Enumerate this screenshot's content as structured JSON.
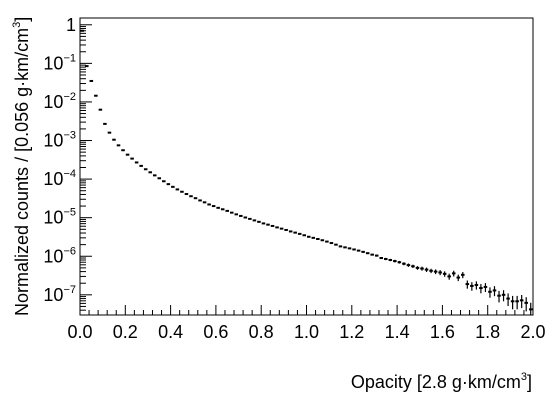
{
  "chart_data": {
    "type": "scatter",
    "style": "histogram markers with error bars",
    "xlabel": "Opacity [2.8 g·km/cm",
    "xlabel_sup": "3",
    "xlabel_close": "]",
    "ylabel": "Normalized counts / [0.056 g·km/cm",
    "ylabel_sup": "3",
    "ylabel_close": "]",
    "xlim": [
      0.0,
      2.0
    ],
    "ylim": [
      3e-08,
      1.5
    ],
    "y_scale": "log",
    "grid": false,
    "x_ticks": [
      {
        "value": 0.0,
        "label": "0.0"
      },
      {
        "value": 0.2,
        "label": "0.2"
      },
      {
        "value": 0.4,
        "label": "0.4"
      },
      {
        "value": 0.6,
        "label": "0.6"
      },
      {
        "value": 0.8,
        "label": "0.8"
      },
      {
        "value": 1.0,
        "label": "1.0"
      },
      {
        "value": 1.2,
        "label": "1.2"
      },
      {
        "value": 1.4,
        "label": "1.4"
      },
      {
        "value": 1.6,
        "label": "1.6"
      },
      {
        "value": 1.8,
        "label": "1.8"
      },
      {
        "value": 2.0,
        "label": "2.0"
      }
    ],
    "y_ticks": [
      {
        "value": 1,
        "label": "1",
        "exp": ""
      },
      {
        "value": 0.1,
        "label": "10",
        "exp": "−1"
      },
      {
        "value": 0.01,
        "label": "10",
        "exp": "−2"
      },
      {
        "value": 0.001,
        "label": "10",
        "exp": "−3"
      },
      {
        "value": 0.0001,
        "label": "10",
        "exp": "−4"
      },
      {
        "value": 1e-05,
        "label": "10",
        "exp": "−5"
      },
      {
        "value": 1e-06,
        "label": "10",
        "exp": "−6"
      },
      {
        "value": 1e-07,
        "label": "10",
        "exp": "−7"
      }
    ],
    "bin_width": 0.02,
    "x": [
      0.01,
      0.03,
      0.05,
      0.07,
      0.09,
      0.11,
      0.13,
      0.15,
      0.17,
      0.19,
      0.21,
      0.23,
      0.25,
      0.27,
      0.29,
      0.31,
      0.33,
      0.35,
      0.37,
      0.39,
      0.41,
      0.43,
      0.45,
      0.47,
      0.49,
      0.51,
      0.53,
      0.55,
      0.57,
      0.59,
      0.61,
      0.63,
      0.65,
      0.67,
      0.69,
      0.71,
      0.73,
      0.75,
      0.77,
      0.79,
      0.81,
      0.83,
      0.85,
      0.87,
      0.89,
      0.91,
      0.93,
      0.95,
      0.97,
      0.99,
      1.01,
      1.03,
      1.05,
      1.07,
      1.09,
      1.11,
      1.13,
      1.15,
      1.17,
      1.19,
      1.21,
      1.23,
      1.25,
      1.27,
      1.29,
      1.31,
      1.33,
      1.35,
      1.37,
      1.39,
      1.41,
      1.43,
      1.45,
      1.47,
      1.49,
      1.51,
      1.53,
      1.55,
      1.57,
      1.59,
      1.61,
      1.63,
      1.65,
      1.67,
      1.69,
      1.71,
      1.73,
      1.75,
      1.77,
      1.79,
      1.81,
      1.83,
      1.85,
      1.87,
      1.89,
      1.91,
      1.93,
      1.95,
      1.97,
      1.99
    ],
    "y": [
      0.7,
      0.085,
      0.035,
      0.0145,
      0.0063,
      0.0027,
      0.0016,
      0.00105,
      0.00075,
      0.00056,
      0.00043,
      0.00034,
      0.00027,
      0.00022,
      0.00018,
      0.00015,
      0.000125,
      0.000105,
      8.8e-05,
      7.4e-05,
      6.3e-05,
      5.4e-05,
      4.7e-05,
      4.1e-05,
      3.6e-05,
      3.2e-05,
      2.8e-05,
      2.5e-05,
      2.2e-05,
      2e-05,
      1.8e-05,
      1.65e-05,
      1.5e-05,
      1.35e-05,
      1.22e-05,
      1.11e-05,
      1.01e-05,
      9.3e-06,
      8.5e-06,
      7.8e-06,
      7.1e-06,
      6.6e-06,
      6.1e-06,
      5.6e-06,
      5.2e-06,
      4.8e-06,
      4.4e-06,
      4.1e-06,
      3.8e-06,
      3.5e-06,
      3.2e-06,
      3e-06,
      2.8e-06,
      2.6e-06,
      2.4e-06,
      2.2e-06,
      2e-06,
      1.8e-06,
      1.7e-06,
      1.6e-06,
      1.5e-06,
      1.4e-06,
      1.3e-06,
      1.2e-06,
      1.1e-06,
      1.04e-06,
      9e-07,
      8.5e-07,
      8e-07,
      7.5e-07,
      7e-07,
      6.4e-07,
      5.9e-07,
      5.5e-07,
      5e-07,
      4.8e-07,
      4.5e-07,
      4.2e-07,
      4e-07,
      3.8e-07,
      3.5e-07,
      3e-07,
      3.6e-07,
      2.8e-07,
      3.3e-07,
      1.9e-07,
      1.7e-07,
      1.8e-07,
      1.5e-07,
      1.6e-07,
      1.2e-07,
      1.3e-07,
      9.5e-08,
      1e-07,
      8e-08,
      6.8e-08,
      6.8e-08,
      7.2e-08,
      6.2e-08,
      4.2e-08
    ],
    "y_err_rel": [
      0.0,
      0.0,
      0.0,
      0.0,
      0.0,
      0.0,
      0.0,
      0.0,
      0.0,
      0.0,
      0.0,
      0.0,
      0.0,
      0.0,
      0.0,
      0.0,
      0.0,
      0.0,
      0.0,
      0.0,
      0.0,
      0.0,
      0.0,
      0.0,
      0.0,
      0.0,
      0.0,
      0.0,
      0.0,
      0.0,
      0.0,
      0.0,
      0.0,
      0.0,
      0.0,
      0.0,
      0.0,
      0.0,
      0.0,
      0.0,
      0.0,
      0.0,
      0.0,
      0.0,
      0.0,
      0.0,
      0.0,
      0.0,
      0.0,
      0.0,
      0.02,
      0.02,
      0.02,
      0.02,
      0.03,
      0.03,
      0.03,
      0.03,
      0.04,
      0.04,
      0.04,
      0.04,
      0.05,
      0.05,
      0.05,
      0.06,
      0.06,
      0.07,
      0.07,
      0.08,
      0.08,
      0.09,
      0.1,
      0.1,
      0.11,
      0.12,
      0.13,
      0.13,
      0.14,
      0.15,
      0.16,
      0.18,
      0.17,
      0.19,
      0.18,
      0.24,
      0.25,
      0.24,
      0.27,
      0.26,
      0.3,
      0.29,
      0.33,
      0.32,
      0.36,
      0.38,
      0.38,
      0.37,
      0.4,
      0.48
    ]
  }
}
